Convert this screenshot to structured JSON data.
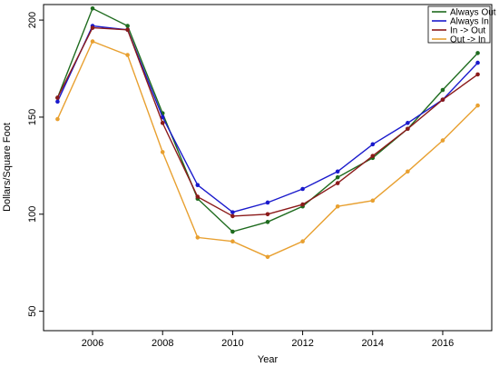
{
  "chart_data": {
    "type": "line",
    "xlabel": "Year",
    "ylabel": "Dollars/Square Foot",
    "xlim": [
      2004.6,
      2017.4
    ],
    "ylim": [
      40,
      208
    ],
    "x_ticks": [
      2006,
      2008,
      2010,
      2012,
      2014,
      2016
    ],
    "y_ticks": [
      50,
      100,
      150,
      200
    ],
    "grid": false,
    "legend_position": "top-right",
    "x": [
      2005,
      2006,
      2007,
      2008,
      2009,
      2010,
      2011,
      2012,
      2013,
      2014,
      2015,
      2016,
      2017
    ],
    "series": [
      {
        "name": "Always Out",
        "color": "#1e6b1e",
        "values": [
          160,
          206,
          197,
          152,
          108,
          91,
          96,
          104,
          119,
          129,
          144,
          164,
          183
        ]
      },
      {
        "name": "Always In",
        "color": "#1a1acc",
        "values": [
          158,
          197,
          195,
          150,
          115,
          101,
          106,
          113,
          122,
          136,
          147,
          159,
          178
        ]
      },
      {
        "name": "In -> Out",
        "color": "#8b1a1a",
        "values": [
          160,
          196,
          195,
          147,
          109,
          99,
          100,
          105,
          116,
          130,
          144,
          159,
          172
        ]
      },
      {
        "name": "Out -> In",
        "color": "#e8a030",
        "values": [
          149,
          189,
          182,
          132,
          88,
          86,
          78,
          86,
          104,
          107,
          122,
          138,
          156
        ]
      }
    ]
  }
}
